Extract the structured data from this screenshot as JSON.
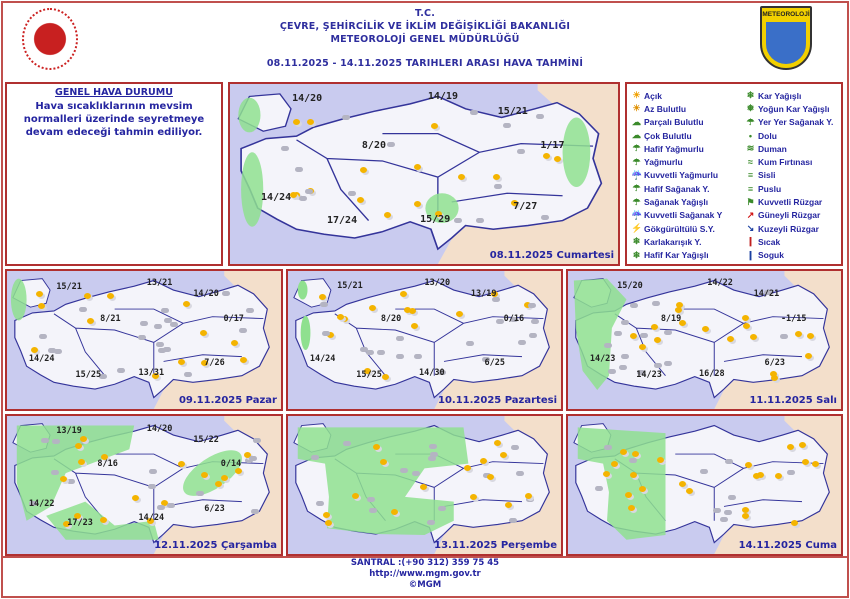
{
  "header": {
    "line1": "T.C.",
    "line2": "ÇEVRE, ŞEHİRCİLİK VE İKLİM DEĞİŞİKLİĞİ BAKANLIĞI",
    "line3": "METEOROLOJİ GENEL MÜDÜRLÜĞÜ",
    "line4": "08.11.2025  -  14.11.2025   TARIHLERI ARASI HAVA TAHMİNİ",
    "logo_right_text": "METEOROLOJİ"
  },
  "general": {
    "title": "GENEL HAVA DURUMU",
    "text": "Hava sıcaklıklarının mevsim normalleri üzerinde seyretmeye devam edeceği tahmin ediliyor."
  },
  "legend": {
    "left": [
      {
        "icon": "sun-icon",
        "label": "Açık"
      },
      {
        "icon": "partly-sunny-icon",
        "label": "Az Bulutlu"
      },
      {
        "icon": "partly-cloudy-icon",
        "label": "Parçalı Bulutlu"
      },
      {
        "icon": "cloudy-icon",
        "label": "Çok Bulutlu"
      },
      {
        "icon": "light-rain-icon",
        "label": "Hafif Yağmurlu"
      },
      {
        "icon": "rain-icon",
        "label": "Yağmurlu"
      },
      {
        "icon": "heavy-rain-icon",
        "label": "Kuvvetli Yağmurlu"
      },
      {
        "icon": "light-shower-icon",
        "label": "Hafif Sağanak Y."
      },
      {
        "icon": "shower-icon",
        "label": "Sağanak Yağışlı"
      },
      {
        "icon": "heavy-shower-icon",
        "label": "Kuvvetli Sağanak Y"
      },
      {
        "icon": "thunderstorm-icon",
        "label": "Gökgürültülü S.Y."
      },
      {
        "icon": "sleet-icon",
        "label": "Karlakarışık Y."
      },
      {
        "icon": "light-snow-icon",
        "label": "Hafif Kar Yağışlı"
      }
    ],
    "right": [
      {
        "icon": "snow-icon",
        "label": "Kar Yağışlı"
      },
      {
        "icon": "heavy-snow-icon",
        "label": "Yoğun Kar Yağışlı"
      },
      {
        "icon": "local-shower-icon",
        "label": "Yer Yer Sağanak Y."
      },
      {
        "icon": "hail-icon",
        "label": "Dolu"
      },
      {
        "icon": "smoke-icon",
        "label": "Duman"
      },
      {
        "icon": "sandstorm-icon",
        "label": "Kum Fırtınası"
      },
      {
        "icon": "fog-icon",
        "label": "Sisli"
      },
      {
        "icon": "haze-icon",
        "label": "Puslu"
      },
      {
        "icon": "strong-wind-icon",
        "label": "Kuvvetli Rüzgar"
      },
      {
        "icon": "south-wind-icon",
        "label": "Güneyli Rüzgar"
      },
      {
        "icon": "north-wind-icon",
        "label": "Kuzeyli Rüzgar"
      },
      {
        "icon": "hot-icon",
        "label": "Sıcak"
      },
      {
        "icon": "cold-icon",
        "label": "Soguk"
      }
    ]
  },
  "maps": [
    {
      "date": "08.11.2025 Cumartesi",
      "temps": [
        "14/20",
        "14/19",
        "15/21",
        "8/20",
        "1/17",
        "14/24",
        "17/24",
        "15/29",
        "7/27"
      ]
    },
    {
      "date": "09.11.2025 Pazar",
      "temps": [
        "15/21",
        "13/21",
        "14/20",
        "8/21",
        "0/17",
        "14/24",
        "15/25",
        "13/31",
        "7/26"
      ]
    },
    {
      "date": "10.11.2025 Pazartesi",
      "temps": [
        "15/21",
        "13/20",
        "13/19",
        "8/20",
        "0/16",
        "14/24",
        "15/25",
        "14/30",
        "6/25"
      ]
    },
    {
      "date": "11.11.2025 Salı",
      "temps": [
        "15/20",
        "14/22",
        "14/21",
        "8/19",
        "-1/15",
        "14/23",
        "14/23",
        "16/28",
        "6/23"
      ]
    },
    {
      "date": "12.11.2025 Çarşamba",
      "temps": [
        "13/19",
        "14/20",
        "15/22",
        "8/16",
        "0/14",
        "14/22",
        "17/23",
        "14/24",
        "6/23"
      ]
    },
    {
      "date": "13.11.2025 Perşembe",
      "temps": []
    },
    {
      "date": "14.11.2025 Cuma",
      "temps": []
    }
  ],
  "footer": {
    "phone": "SANTRAL :(+90 312) 359 75 45",
    "url": "http://www.mgm.gov.tr",
    "copy": "©MGM"
  },
  "colors": {
    "text": "#2525a0",
    "border": "#b03030",
    "sea": "#c9cbef",
    "rain_area": "#8fe08f"
  }
}
